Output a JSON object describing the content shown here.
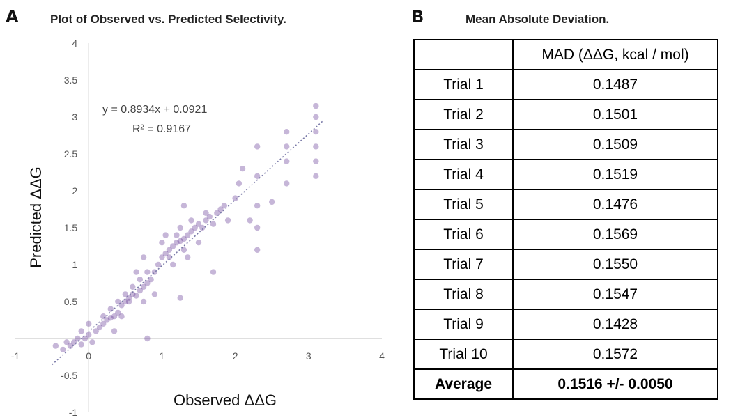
{
  "panel_a": {
    "letter": "A",
    "title": "Plot of Observed vs. Predicted Selectivity.",
    "equation": "y = 0.8934x + 0.0921",
    "r_squared": "R² = 0.9167"
  },
  "panel_b": {
    "letter": "B",
    "title": "Mean Absolute Deviation.",
    "header": [
      "",
      "MAD (ΔΔG, kcal / mol)"
    ],
    "rows": [
      {
        "label": "Trial 1",
        "value": "0.1487"
      },
      {
        "label": "Trial 2",
        "value": "0.1501"
      },
      {
        "label": "Trial 3",
        "value": "0.1509"
      },
      {
        "label": "Trial 4",
        "value": "0.1519"
      },
      {
        "label": "Trial 5",
        "value": "0.1476"
      },
      {
        "label": "Trial 6",
        "value": "0.1569"
      },
      {
        "label": "Trial 7",
        "value": "0.1550"
      },
      {
        "label": "Trial 8",
        "value": "0.1547"
      },
      {
        "label": "Trial 9",
        "value": "0.1428"
      },
      {
        "label": "Trial 10",
        "value": "0.1572"
      }
    ],
    "average": {
      "label": "Average",
      "value": "0.1516 +/- 0.0050"
    }
  },
  "chart_data": [
    {
      "type": "scatter",
      "title": "Plot of Observed vs. Predicted Selectivity.",
      "xlabel": "Observed ΔΔG",
      "ylabel": "Predicted ΔΔG",
      "xlim": [
        -1,
        4
      ],
      "ylim": [
        -1,
        4
      ],
      "xticks": [
        "-1",
        "0",
        "1",
        "2",
        "3",
        "4"
      ],
      "yticks": [
        "-1",
        "-0.5",
        "0.5",
        "1",
        "1.5",
        "2",
        "2.5",
        "3",
        "3.5",
        "4"
      ],
      "grid": false,
      "trendline": {
        "slope": 0.8934,
        "intercept": 0.0921,
        "x_range": [
          -0.5,
          3.2
        ]
      },
      "annotations": [
        "y = 0.8934x + 0.0921",
        "R² = 0.9167"
      ],
      "point_color": "#5b2d8e",
      "series": [
        {
          "x": [
            -0.45,
            -0.35,
            -0.3,
            -0.25,
            -0.2,
            -0.15,
            -0.1,
            -0.05,
            0.0,
            0.05,
            0.1,
            0.15,
            0.2,
            0.25,
            0.3,
            0.35,
            0.4,
            0.45,
            0.5,
            0.55,
            0.6,
            0.65,
            0.7,
            0.75,
            0.8,
            0.85,
            0.9,
            0.95,
            1.0,
            1.05,
            1.1,
            1.15,
            1.2,
            1.25,
            1.3,
            1.35,
            1.4,
            1.45,
            1.5,
            1.55,
            1.6,
            1.65,
            1.7,
            1.75,
            1.8,
            1.85,
            1.9,
            2.0,
            2.05,
            2.1,
            2.3,
            2.3,
            2.3,
            2.3,
            2.3,
            2.7,
            2.7,
            2.7,
            2.7,
            3.1,
            3.1,
            3.1,
            3.1,
            3.1,
            3.1,
            -0.1,
            0.0,
            0.2,
            0.3,
            0.4,
            0.5,
            0.6,
            0.7,
            0.8,
            0.9,
            1.0,
            1.1,
            1.2,
            1.3,
            1.4,
            1.5,
            1.6,
            0.45,
            0.55,
            0.65,
            0.75,
            1.05,
            1.15,
            1.25,
            1.35,
            0.35,
            0.75,
            1.3,
            1.7,
            0.8,
            1.25,
            2.2,
            2.5
          ],
          "y": [
            -0.1,
            -0.15,
            -0.05,
            -0.1,
            -0.05,
            0.0,
            -0.08,
            0.0,
            0.05,
            -0.05,
            0.1,
            0.15,
            0.2,
            0.25,
            0.28,
            0.3,
            0.35,
            0.45,
            0.5,
            0.55,
            0.6,
            0.58,
            0.65,
            0.7,
            0.75,
            0.8,
            0.9,
            1.0,
            1.1,
            1.15,
            1.2,
            1.25,
            1.3,
            1.32,
            1.35,
            1.4,
            1.45,
            1.5,
            1.55,
            1.5,
            1.6,
            1.65,
            1.55,
            1.7,
            1.75,
            1.8,
            1.6,
            1.9,
            2.1,
            2.3,
            1.2,
            1.5,
            1.8,
            2.2,
            2.6,
            2.1,
            2.4,
            2.6,
            2.8,
            2.2,
            2.4,
            2.6,
            2.8,
            3.0,
            3.15,
            0.1,
            0.2,
            0.3,
            0.4,
            0.5,
            0.6,
            0.7,
            0.8,
            0.9,
            0.6,
            1.3,
            1.1,
            1.4,
            1.2,
            1.6,
            1.3,
            1.7,
            0.3,
            0.5,
            0.9,
            0.5,
            1.4,
            1.0,
            1.5,
            1.1,
            0.1,
            1.1,
            1.8,
            0.9,
            0.0,
            0.55,
            1.6,
            1.85
          ]
        }
      ]
    },
    {
      "type": "table",
      "title": "Mean Absolute Deviation.",
      "columns": [
        "",
        "MAD (ΔΔG, kcal / mol)"
      ],
      "rows": [
        [
          "Trial 1",
          "0.1487"
        ],
        [
          "Trial 2",
          "0.1501"
        ],
        [
          "Trial 3",
          "0.1509"
        ],
        [
          "Trial 4",
          "0.1519"
        ],
        [
          "Trial 5",
          "0.1476"
        ],
        [
          "Trial 6",
          "0.1569"
        ],
        [
          "Trial 7",
          "0.1550"
        ],
        [
          "Trial 8",
          "0.1547"
        ],
        [
          "Trial 9",
          "0.1428"
        ],
        [
          "Trial 10",
          "0.1572"
        ],
        [
          "Average",
          "0.1516 +/- 0.0050"
        ]
      ]
    }
  ]
}
